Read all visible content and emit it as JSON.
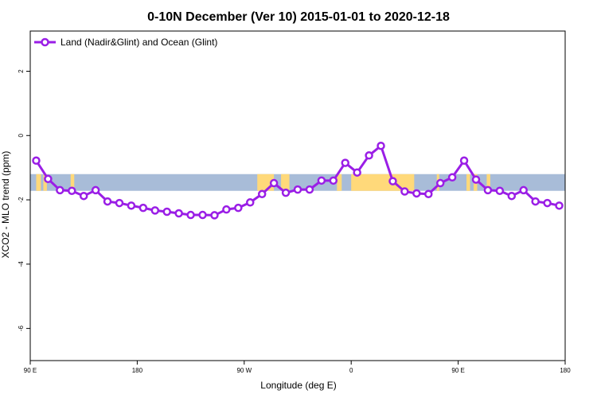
{
  "chart_data": {
    "type": "line",
    "title": "0-10N December (Ver 10)   2015-01-01 to 2020-12-18",
    "xlabel": "Longitude (deg E)",
    "ylabel": "XCO2 - MLO trend (ppm)",
    "x_ticks": [
      {
        "value": 90,
        "label": "90 E"
      },
      {
        "value": 180,
        "label": "180"
      },
      {
        "value": 270,
        "label": "90 W"
      },
      {
        "value": 360,
        "label": "0"
      },
      {
        "value": 450,
        "label": "90 E"
      },
      {
        "value": 540,
        "label": "180"
      }
    ],
    "y_ticks": [
      {
        "value": 2,
        "label": "2"
      },
      {
        "value": 0,
        "label": "0"
      },
      {
        "value": -2,
        "label": "-2"
      },
      {
        "value": -4,
        "label": "-4"
      },
      {
        "value": -6,
        "label": "-6"
      }
    ],
    "xlim": [
      90,
      540
    ],
    "ylim": [
      -7.0,
      3.25
    ],
    "grid": false,
    "legend_position": "top-left",
    "series": [
      {
        "name": "Land (Nadir&Glint) and Ocean (Glint)",
        "color": "#9a1ee6",
        "marker": "open-circle",
        "x": [
          95,
          105,
          115,
          125,
          135,
          145,
          155,
          165,
          175,
          185,
          195,
          205,
          215,
          225,
          235,
          245,
          255,
          265,
          275,
          285,
          295,
          305,
          315,
          325,
          335,
          345,
          355,
          365,
          375,
          385,
          395,
          405,
          415,
          425,
          435,
          445,
          455,
          465,
          475,
          485,
          495,
          505,
          515,
          525,
          535
        ],
        "y": [
          -0.78,
          -1.35,
          -1.7,
          -1.72,
          -1.88,
          -1.7,
          -2.05,
          -2.1,
          -2.18,
          -2.25,
          -2.33,
          -2.37,
          -2.42,
          -2.47,
          -2.47,
          -2.48,
          -2.3,
          -2.25,
          -2.08,
          -1.82,
          -1.48,
          -1.78,
          -1.68,
          -1.68,
          -1.4,
          -1.4,
          -0.85,
          -1.15,
          -0.62,
          -0.32,
          -1.42,
          -1.74,
          -1.8,
          -1.82,
          -1.48,
          -1.3,
          -0.78,
          -1.37,
          -1.7,
          -1.72,
          -1.88,
          -1.7,
          -2.05,
          -2.1,
          -2.18
        ]
      }
    ],
    "background_map": {
      "lat_band": "0-10N",
      "ocean_color": "#a8bcd8",
      "land_color": "#ffd97a",
      "y_range": [
        -1.72,
        -1.2
      ],
      "land_segments": [
        [
          95,
          99
        ],
        [
          101,
          104
        ],
        [
          124,
          127
        ],
        [
          281,
          295
        ],
        [
          301,
          308
        ],
        [
          348,
          352
        ],
        [
          360,
          413
        ],
        [
          432,
          434
        ],
        [
          457,
          460
        ],
        [
          463,
          466
        ],
        [
          474,
          477
        ]
      ]
    }
  }
}
